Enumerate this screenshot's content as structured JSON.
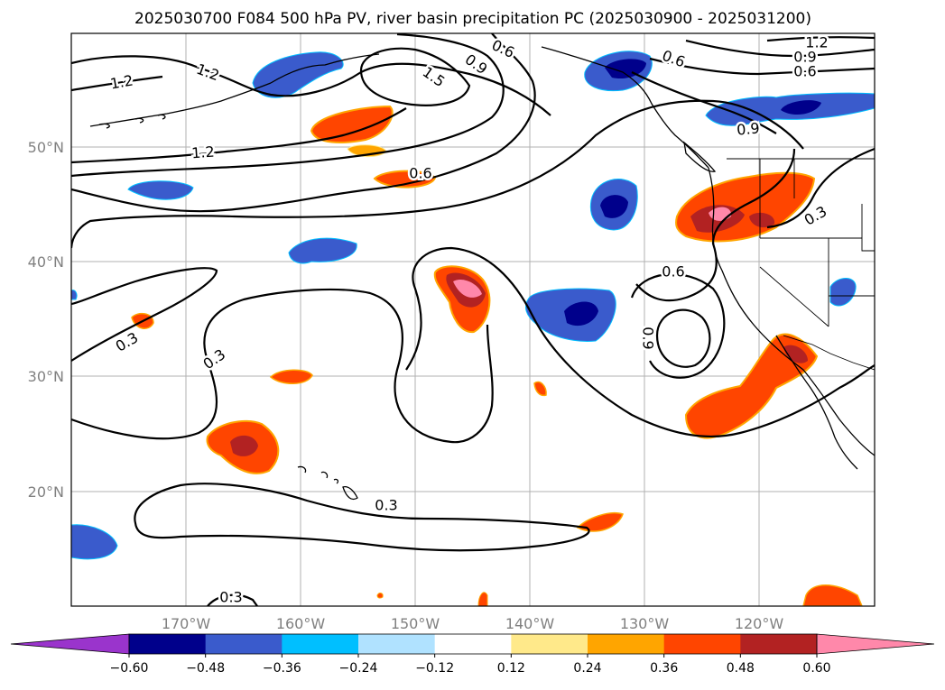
{
  "chart_data": {
    "type": "map-contour",
    "title": "2025030700 F084 500 hPa PV, river basin precipitation PC (2025030900 - 2025031200)",
    "lon_ticks": [
      "170°W",
      "160°W",
      "150°W",
      "140°W",
      "130°W",
      "120°W"
    ],
    "lat_ticks": [
      "50°N",
      "40°N",
      "30°N",
      "20°N"
    ],
    "lon_range": [
      -180,
      -110
    ],
    "lat_range": [
      10,
      60
    ],
    "grid": true,
    "colorbar": {
      "levels": [
        -0.6,
        -0.48,
        -0.36,
        -0.24,
        -0.12,
        0.12,
        0.24,
        0.36,
        0.48,
        0.6
      ],
      "tick_labels": [
        "−0.60",
        "−0.48",
        "−0.36",
        "−0.24",
        "−0.12",
        "0.12",
        "0.24",
        "0.36",
        "0.48",
        "0.60"
      ],
      "colors": [
        "#9a34cc",
        "#00008b",
        "#3a5bcc",
        "#00bfff",
        "#b0e2ff",
        "#ffffff",
        "#ffe98a",
        "#ffa500",
        "#ff4500",
        "#b22222",
        "#ff88aa"
      ],
      "extend": "both"
    },
    "contour_labels": [
      "1.2",
      "1.2",
      "1.2",
      "1.5",
      "0.9",
      "0.6",
      "0.6",
      "1.2",
      "0.9",
      "0.6",
      "0.9",
      "0.6",
      "0.3",
      "0.6",
      "0.9",
      "0.3",
      "0.3",
      "0.3",
      "0.3"
    ]
  }
}
